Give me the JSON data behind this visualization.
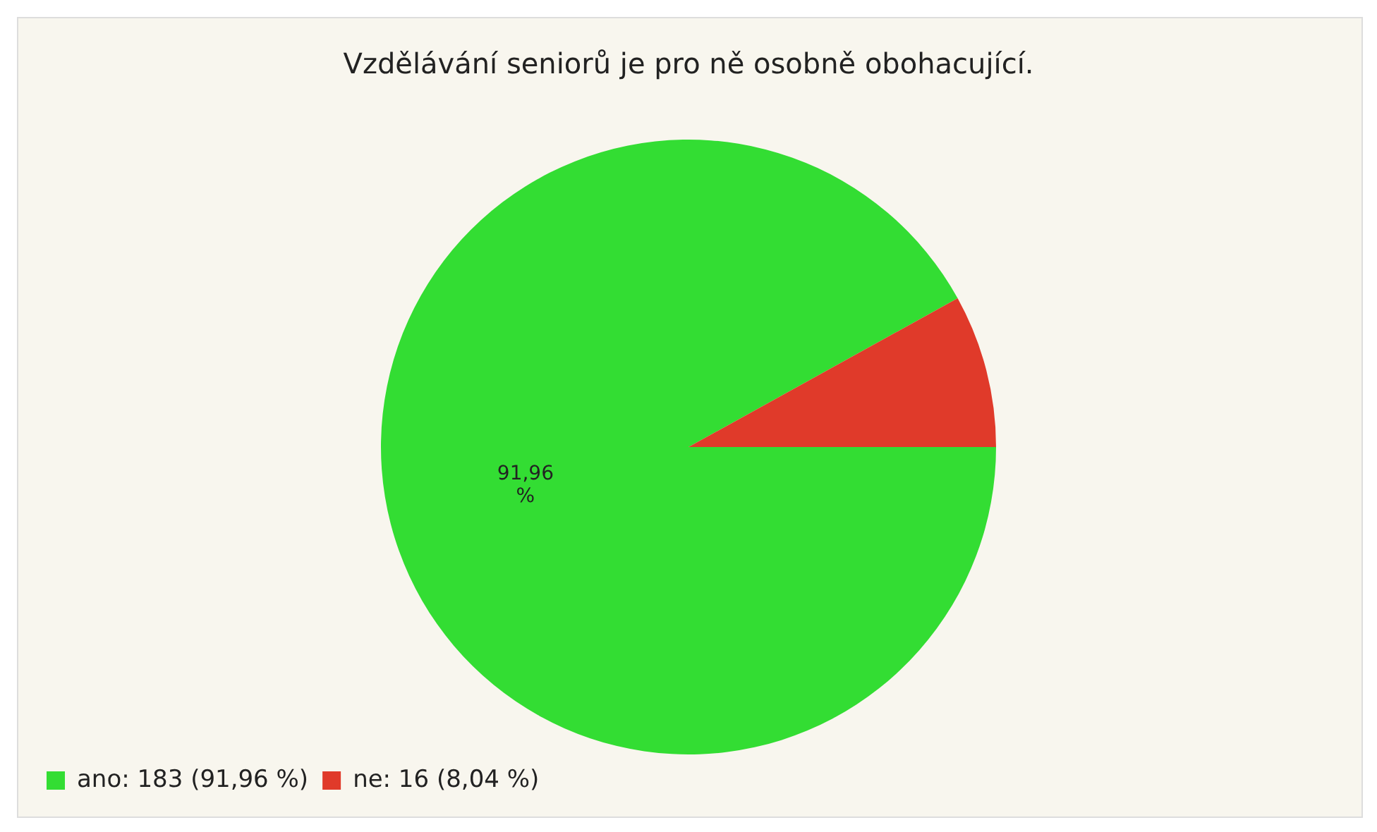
{
  "chart_data": {
    "type": "pie",
    "title": "Vzdělávání seniorů je pro ně osobně obohacující.",
    "categories": [
      "ano: 183 (91,96 %)",
      "ne: 16 (8,04 %)"
    ],
    "values": [
      91.96,
      8.04
    ],
    "colors": [
      "#33dd33",
      "#e03a2a"
    ],
    "value_labels": [
      "91,96 %",
      null
    ],
    "legend": "bottom left"
  }
}
